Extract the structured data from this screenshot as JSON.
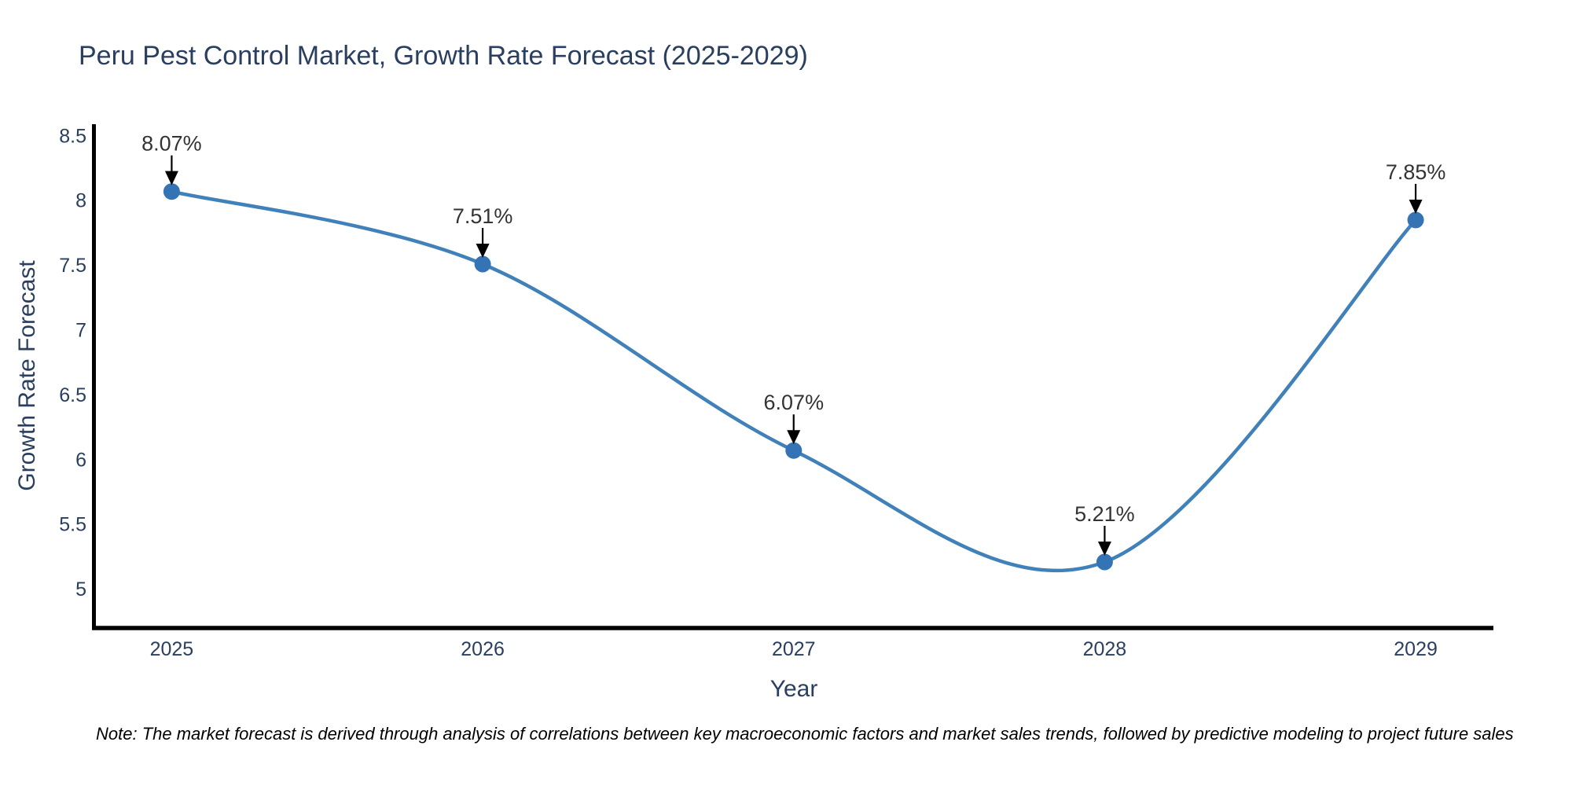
{
  "page": {
    "background": "#ffffff"
  },
  "chart_data": {
    "type": "line",
    "title": "Peru Pest Control Market, Growth Rate Forecast (2025-2029)",
    "xlabel": "Year",
    "ylabel": "Growth Rate Forecast",
    "x": [
      2025,
      2026,
      2027,
      2028,
      2029
    ],
    "series": [
      {
        "name": "Growth Rate Forecast",
        "values": [
          8.07,
          7.51,
          6.07,
          5.21,
          7.85
        ],
        "point_labels": [
          "8.07%",
          "7.51%",
          "6.07%",
          "5.21%",
          "7.85%"
        ]
      }
    ],
    "x_tick_labels": [
      "2025",
      "2026",
      "2027",
      "2028",
      "2029"
    ],
    "y_tick_values": [
      5,
      5.5,
      6,
      6.5,
      7,
      7.5,
      8,
      8.5
    ],
    "y_tick_labels": [
      "5",
      "5.5",
      "6",
      "6.5",
      "7",
      "7.5",
      "8",
      "8.5"
    ],
    "xlim": [
      2024.75,
      2029.25
    ],
    "ylim": [
      4.7,
      8.59
    ],
    "line_shape": "spline",
    "grid": false,
    "legend_position": "none",
    "annotations_arrows": true,
    "colors": {
      "line": "#4181ba",
      "marker": "#3474b5",
      "axis_spine": "#000000",
      "title_text": "#2a3f5f",
      "tick_text": "#2a3f5f",
      "annotation_text": "#333333",
      "arrow": "#000000",
      "note_text": "#000000"
    }
  },
  "note": "Note: The market forecast is derived through analysis of correlations between key macroeconomic factors and market sales trends, followed by predictive modeling to project future sales"
}
